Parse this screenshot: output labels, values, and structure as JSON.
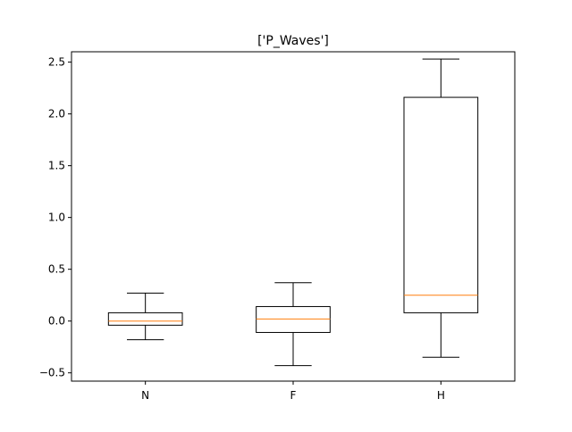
{
  "chart_data": {
    "type": "box",
    "title": "['P_Waves']",
    "xlabel": "",
    "ylabel": "",
    "categories": [
      "N",
      "F",
      "H"
    ],
    "ylim": [
      -0.58,
      2.6
    ],
    "yticks": [
      -0.5,
      0.0,
      0.5,
      1.0,
      1.5,
      2.0,
      2.5
    ],
    "ytick_labels": [
      "−0.5",
      "0.0",
      "0.5",
      "1.0",
      "1.5",
      "2.0",
      "2.5"
    ],
    "grid": false,
    "boxes": [
      {
        "category": "N",
        "whisker_low": -0.18,
        "q1": -0.04,
        "median": 0.0,
        "q3": 0.08,
        "whisker_high": 0.27
      },
      {
        "category": "F",
        "whisker_low": -0.43,
        "q1": -0.11,
        "median": 0.02,
        "q3": 0.14,
        "whisker_high": 0.37
      },
      {
        "category": "H",
        "whisker_low": -0.35,
        "q1": 0.08,
        "median": 0.25,
        "q3": 2.16,
        "whisker_high": 2.53
      }
    ],
    "colors": {
      "box": "#000000",
      "median": "#ff7f0e"
    }
  }
}
